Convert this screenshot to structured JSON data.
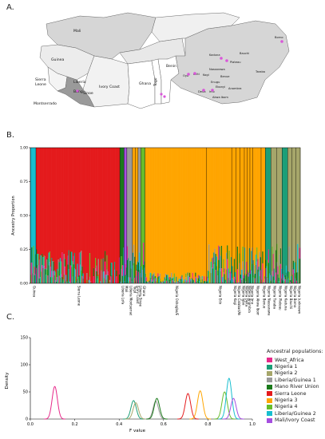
{
  "panels": {
    "a": "A.",
    "b": "B.",
    "c": "C."
  },
  "map": {
    "country_labels": [
      "Mali",
      "Guinea",
      "Sierra Leone",
      "Ivory Coast",
      "Ghana",
      "Togo",
      "Benin",
      "Liberia",
      "Bong",
      "Sinoe",
      "Montserrado"
    ],
    "nigeria_labels": [
      "Borno",
      "Kaduna",
      "Bauchi",
      "Plateau",
      "Nassarawa",
      "Taraba",
      "Kogi",
      "Benue",
      "Oyo",
      "Ekiti",
      "Enugu",
      "Ebonyi",
      "Delta",
      "Imo",
      "Anambra",
      "Akwa Ibom"
    ]
  },
  "chart_data": [
    {
      "type": "bar",
      "title": "",
      "ylabel": "Ancestry Proportion",
      "ylim": [
        0,
        1
      ],
      "yticks": [
        "0.00",
        "0.25",
        "0.50",
        "0.75",
        "1.00"
      ],
      "stacked": true,
      "categories": [
        "Guinea",
        "Sierra Leone",
        "Liberia Lofa",
        "Mali",
        "Liberia Montserrado/Bong",
        "Togo",
        "Ivory Coast",
        "Liberia Sinoe",
        "Ghana",
        "Nigeria Oshogbo/Ekiti",
        "Nigeria Edo",
        "Nigeria Kogi",
        "Nigeria Calabar/Akwa Ibom",
        "Nigeria Igbo",
        "Nigeria Delta",
        "Nigeria Anambra",
        "Nigeria Imo",
        "Nigeria Akwa Ibom/Ebonyi",
        "Nigeria Benue",
        "Nigeria Nassarawa",
        "Nigeria Taraba",
        "Nigeria Plateau",
        "Nigeria Kaduna",
        "Nigeria Bauchi",
        "Nigeria Borno",
        "Nigeria (unknown region)"
      ],
      "dominant_series": [
        "Liberia/Guinea 2",
        "Sierra Leone",
        "Mano River Union",
        "Mali/Ivory Coast",
        "Liberia/Guinea 1",
        "Nigeria 3",
        "Nigeria 3",
        "Liberia/Guinea 1",
        "Nigeria 4",
        "Nigeria 3",
        "Nigeria 3",
        "Nigeria 3",
        "Nigeria 3",
        "Nigeria 3",
        "Nigeria 3",
        "Nigeria 3",
        "Nigeria 3",
        "Nigeria 3",
        "Nigeria 3",
        "Nigeria 1",
        "Nigeria 2",
        "Nigeria 2",
        "Nigeria 1",
        "Nigeria 2",
        "Nigeria 2",
        "Nigeria 2"
      ]
    },
    {
      "type": "line",
      "title": "",
      "xlabel": "F value",
      "ylabel": "Density",
      "xlim": [
        0,
        1
      ],
      "ylim": [
        0,
        150
      ],
      "xticks": [
        "0.0",
        "0.2",
        "0.4",
        "0.6",
        "0.8",
        "1.0"
      ],
      "yticks": [
        "0",
        "50",
        "100",
        "150"
      ],
      "series": [
        {
          "name": "West_Africa",
          "color": "#e7298a",
          "peak_x": 0.11,
          "peak_y": 60
        },
        {
          "name": "Nigeria 1",
          "color": "#1b9e77",
          "peak_x": 0.465,
          "peak_y": 34
        },
        {
          "name": "Nigeria 2",
          "color": "#a6a66a",
          "peak_x": 0.475,
          "peak_y": 30
        },
        {
          "name": "Liberia/Guinea 1",
          "color": "#999999",
          "peak_x": 0.565,
          "peak_y": 33
        },
        {
          "name": "Mano River Union",
          "color": "#1a7a1a",
          "peak_x": 0.57,
          "peak_y": 38
        },
        {
          "name": "Sierra Leone",
          "color": "#e41a1c",
          "peak_x": 0.71,
          "peak_y": 47
        },
        {
          "name": "Nigeria 3",
          "color": "#ffa500",
          "peak_x": 0.765,
          "peak_y": 52
        },
        {
          "name": "Nigeria 4",
          "color": "#66bd2b",
          "peak_x": 0.875,
          "peak_y": 50
        },
        {
          "name": "Liberia/Guinea 2",
          "color": "#17becf",
          "peak_x": 0.895,
          "peak_y": 75
        },
        {
          "name": "Mali/Ivory Coast",
          "color": "#a54ee0",
          "peak_x": 0.915,
          "peak_y": 38
        }
      ]
    }
  ],
  "legend": {
    "title": "Ancestral populations:",
    "items": [
      {
        "label": "West_Africa",
        "color": "#e7298a"
      },
      {
        "label": "Nigeria 1",
        "color": "#1b9e77"
      },
      {
        "label": "Nigeria 2",
        "color": "#a6a66a"
      },
      {
        "label": "Liberia/Guinea 1",
        "color": "#999999"
      },
      {
        "label": "Mano River Union",
        "color": "#1a7a1a"
      },
      {
        "label": "Sierra Leone",
        "color": "#e41a1c"
      },
      {
        "label": "Nigeria 3",
        "color": "#ffa500"
      },
      {
        "label": "Nigeria 4",
        "color": "#66bd2b"
      },
      {
        "label": "Liberia/Guinea 2",
        "color": "#17becf"
      },
      {
        "label": "Mali/Ivory Coast",
        "color": "#a54ee0"
      }
    ]
  }
}
